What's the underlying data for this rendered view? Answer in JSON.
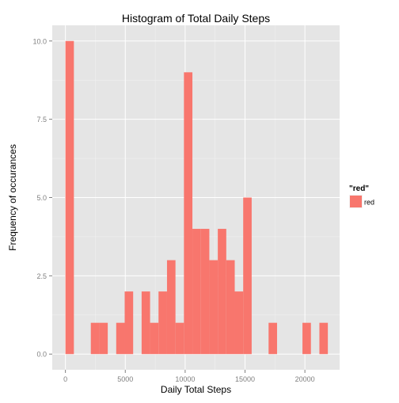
{
  "chart_data": {
    "type": "bar",
    "title": "Histogram of Total Daily Steps",
    "xlabel": "Daily Total Steps",
    "ylabel": "Frequency of occurances",
    "xlim": [
      -1100,
      22900
    ],
    "ylim": [
      -0.5,
      10.5
    ],
    "x_ticks": [
      0,
      5000,
      10000,
      15000,
      20000
    ],
    "x_tick_labels": [
      "0",
      "5000",
      "10000",
      "15000",
      "20000"
    ],
    "y_ticks": [
      0,
      2.5,
      5,
      7.5,
      10
    ],
    "y_tick_labels": [
      "0.0",
      "2.5",
      "5.0",
      "7.5",
      "10.0"
    ],
    "grid": true,
    "legend": {
      "title": "\"red\"",
      "placement": "right",
      "entries": [
        {
          "label": "red",
          "color": "#F8766D"
        }
      ]
    },
    "bin_width": 707,
    "series": [
      {
        "name": "red",
        "color": "#F8766D",
        "bins": [
          {
            "x0": 0,
            "x1": 707,
            "count": 10
          },
          {
            "x0": 707,
            "x1": 1414,
            "count": 0
          },
          {
            "x0": 1414,
            "x1": 2121,
            "count": 0
          },
          {
            "x0": 2121,
            "x1": 2828,
            "count": 1
          },
          {
            "x0": 2828,
            "x1": 3535,
            "count": 1
          },
          {
            "x0": 3535,
            "x1": 4242,
            "count": 0
          },
          {
            "x0": 4242,
            "x1": 4949,
            "count": 1
          },
          {
            "x0": 4949,
            "x1": 5656,
            "count": 2
          },
          {
            "x0": 5656,
            "x1": 6363,
            "count": 0
          },
          {
            "x0": 6363,
            "x1": 7070,
            "count": 2
          },
          {
            "x0": 7070,
            "x1": 7777,
            "count": 1
          },
          {
            "x0": 7777,
            "x1": 8484,
            "count": 2
          },
          {
            "x0": 8484,
            "x1": 9191,
            "count": 3
          },
          {
            "x0": 9191,
            "x1": 9898,
            "count": 1
          },
          {
            "x0": 9898,
            "x1": 10605,
            "count": 9
          },
          {
            "x0": 10605,
            "x1": 11312,
            "count": 4
          },
          {
            "x0": 11312,
            "x1": 12019,
            "count": 4
          },
          {
            "x0": 12019,
            "x1": 12726,
            "count": 3
          },
          {
            "x0": 12726,
            "x1": 13433,
            "count": 4
          },
          {
            "x0": 13433,
            "x1": 14140,
            "count": 3
          },
          {
            "x0": 14140,
            "x1": 14847,
            "count": 2
          },
          {
            "x0": 14847,
            "x1": 15554,
            "count": 5
          },
          {
            "x0": 15554,
            "x1": 16261,
            "count": 0
          },
          {
            "x0": 16261,
            "x1": 16968,
            "count": 0
          },
          {
            "x0": 16968,
            "x1": 17675,
            "count": 1
          },
          {
            "x0": 17675,
            "x1": 18382,
            "count": 0
          },
          {
            "x0": 18382,
            "x1": 19089,
            "count": 0
          },
          {
            "x0": 19089,
            "x1": 19796,
            "count": 0
          },
          {
            "x0": 19796,
            "x1": 20503,
            "count": 1
          },
          {
            "x0": 20503,
            "x1": 21210,
            "count": 0
          },
          {
            "x0": 21210,
            "x1": 21917,
            "count": 1
          }
        ]
      }
    ]
  },
  "colors": {
    "panel_background": "#E5E5E5",
    "grid_major": "#FFFFFF",
    "grid_minor": "#F2F2F2",
    "tick_text": "#7F7F7F",
    "text": "#000000"
  }
}
